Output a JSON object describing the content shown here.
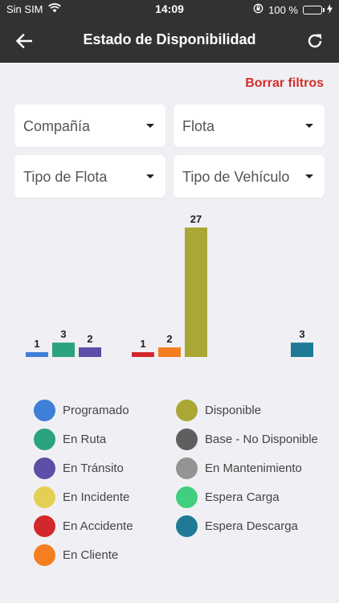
{
  "status_bar": {
    "carrier": "Sin SIM",
    "time": "14:09",
    "battery": "100 %"
  },
  "nav": {
    "title": "Estado de Disponibilidad"
  },
  "filters": {
    "clear_label": "Borrar filtros",
    "dropdowns": [
      {
        "label": "Compañía"
      },
      {
        "label": "Flota"
      },
      {
        "label": "Tipo de Flota"
      },
      {
        "label": "Tipo de Vehículo"
      }
    ]
  },
  "chart_data": {
    "type": "bar",
    "categories": [
      "Programado",
      "En Ruta",
      "En Tránsito",
      "En Accidente",
      "En Cliente",
      "Disponible",
      "Espera Descarga"
    ],
    "values": [
      1,
      3,
      2,
      1,
      2,
      27,
      3
    ],
    "colors": [
      "#3f7fd8",
      "#2ba37f",
      "#5b4fa8",
      "#d3282b",
      "#f57f20",
      "#aaa734",
      "#1f7a98"
    ],
    "ylim": [
      0,
      27
    ]
  },
  "legend": {
    "items": [
      {
        "label": "Programado",
        "color": "#3f7fd8"
      },
      {
        "label": "Disponible",
        "color": "#aaa734"
      },
      {
        "label": "En Ruta",
        "color": "#2ba37f"
      },
      {
        "label": "Base - No Disponible",
        "color": "#5f5f5f"
      },
      {
        "label": "En Tránsito",
        "color": "#5b4fa8"
      },
      {
        "label": "En Mantenimiento",
        "color": "#949494"
      },
      {
        "label": "En Incidente",
        "color": "#e3cf52"
      },
      {
        "label": "Espera Carga",
        "color": "#3fcf7f"
      },
      {
        "label": "En Accidente",
        "color": "#d3282b"
      },
      {
        "label": "Espera Descarga",
        "color": "#1f7a98"
      },
      {
        "label": "En Cliente",
        "color": "#f57f20"
      }
    ]
  }
}
